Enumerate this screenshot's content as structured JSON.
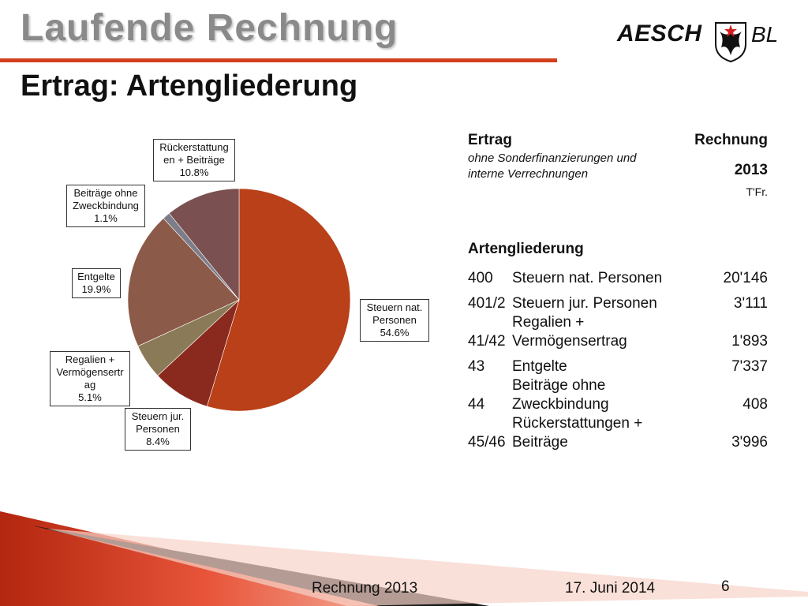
{
  "header": {
    "title": "Laufende Rechnung",
    "subtitle": "Ertrag: Artengliederung",
    "logo_word": "AESCH",
    "logo_bl": "BL",
    "logo_icon": "coat-of-arms-shield",
    "accent_color": "#d2411c"
  },
  "chart_data": {
    "type": "pie",
    "slices": [
      {
        "label": "Steuern nat. Personen",
        "percent_label": "54.6%",
        "value": 54.6,
        "color": "#b94018"
      },
      {
        "label": "Steuern jur. Personen",
        "percent_label": "8.4%",
        "value": 8.4,
        "color": "#8a2a1e"
      },
      {
        "label": "Regalien + Vermögensertrag",
        "percent_label": "5.1%",
        "value": 5.1,
        "color": "#8a7a58"
      },
      {
        "label": "Entgelte",
        "percent_label": "19.9%",
        "value": 19.9,
        "color": "#8c5a48"
      },
      {
        "label": "Beiträge ohne Zweckbindung",
        "percent_label": "1.1%",
        "value": 1.1,
        "color": "#7d7d8a"
      },
      {
        "label": "Rückerstattungen + Beiträge",
        "percent_label": "10.8%",
        "value": 10.8,
        "color": "#7a5050"
      }
    ],
    "label_boxes": [
      {
        "lines": [
          "Steuern nat.",
          "Personen",
          "54.6%"
        ]
      },
      {
        "lines": [
          "Steuern jur.",
          "Personen",
          "8.4%"
        ]
      },
      {
        "lines": [
          "Regalien +",
          "Vermögensertr",
          "ag",
          "5.1%"
        ]
      },
      {
        "lines": [
          "Entgelte",
          "19.9%"
        ]
      },
      {
        "lines": [
          "Beiträge ohne",
          "Zweckbindung",
          "1.1%"
        ]
      },
      {
        "lines": [
          "Rückerstattung",
          "en + Beiträge",
          "10.8%"
        ]
      }
    ]
  },
  "table": {
    "col_title": "Ertrag",
    "col_note": "ohne Sonderfinanzierungen und interne Verrechnungen",
    "col_rechnung": "Rechnung",
    "col_year": "2013",
    "col_unit": "T'Fr.",
    "section_title": "Artengliederung",
    "rows": [
      {
        "code": "400",
        "pre": "",
        "label": "Steuern nat. Personen",
        "value": "20'146"
      },
      {
        "code": "401/2",
        "pre": "",
        "label": "Steuern jur. Personen",
        "value": "3'111"
      },
      {
        "code": "41/42",
        "pre": "Regalien +",
        "label": "Vermögensertrag",
        "value": "1'893"
      },
      {
        "code": "43",
        "pre": "",
        "label": "Entgelte",
        "value": "7'337"
      },
      {
        "code": "44",
        "pre": "Beiträge ohne",
        "label": "Zweckbindung",
        "value": "408"
      },
      {
        "code": "45/46",
        "pre": "Rückerstattungen +",
        "label": "Beiträge",
        "value": "3'996"
      }
    ]
  },
  "footer": {
    "left": "Rechnung 2013",
    "middle": "17. Juni 2014",
    "page": "6"
  }
}
